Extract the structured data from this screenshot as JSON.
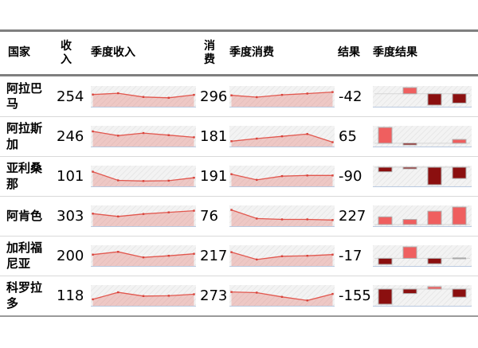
{
  "chart_data": {
    "type": "table",
    "title": "",
    "columns": [
      {
        "key": "country",
        "label": "国家",
        "kind": "text"
      },
      {
        "key": "income",
        "label": "收入",
        "kind": "number"
      },
      {
        "key": "income_trend",
        "label": "季度收入",
        "kind": "sparkline-area"
      },
      {
        "key": "spending",
        "label": "消费",
        "kind": "number"
      },
      {
        "key": "spending_trend",
        "label": "季度消费",
        "kind": "sparkline-area"
      },
      {
        "key": "result",
        "label": "结果",
        "kind": "number"
      },
      {
        "key": "result_trend",
        "label": "季度结果",
        "kind": "winloss-bars"
      }
    ],
    "rows": [
      {
        "country": "阿拉巴马",
        "income": 254,
        "income_trend": [
          60,
          68,
          45,
          40,
          58
        ],
        "spending": 296,
        "spending_trend": [
          55,
          44,
          58,
          66,
          75
        ],
        "result": -42,
        "result_trend": [
          null,
          30,
          -55,
          -45
        ]
      },
      {
        "country": "阿拉斯加",
        "income": 246,
        "income_trend": [
          78,
          52,
          68,
          55,
          42
        ],
        "spending": 181,
        "spending_trend": [
          18,
          34,
          48,
          62,
          12
        ],
        "result": 65,
        "result_trend": [
          75,
          -8,
          null,
          18
        ]
      },
      {
        "country": "亚利桑那",
        "income": 101,
        "income_trend": [
          75,
          22,
          18,
          20,
          38
        ],
        "spending": 191,
        "spending_trend": [
          60,
          25,
          48,
          52,
          52
        ],
        "result": -90,
        "result_trend": [
          -18,
          -6,
          -70,
          -45
        ]
      },
      {
        "country": "阿肯色",
        "income": 303,
        "income_trend": [
          62,
          45,
          60,
          70,
          80
        ],
        "spending": 76,
        "spending_trend": [
          85,
          32,
          27,
          27,
          23
        ],
        "result": 227,
        "result_trend": [
          30,
          20,
          52,
          68
        ]
      },
      {
        "country": "加利福尼亚",
        "income": 200,
        "income_trend": [
          55,
          72,
          38,
          48,
          60
        ],
        "spending": 217,
        "spending_trend": [
          70,
          25,
          45,
          48,
          55
        ],
        "result": -17,
        "result_trend": [
          -20,
          38,
          -18,
          0
        ]
      },
      {
        "country": "科罗拉多",
        "income": 118,
        "income_trend": [
          25,
          68,
          45,
          47,
          56
        ],
        "spending": 273,
        "spending_trend": [
          70,
          66,
          40,
          18,
          58
        ],
        "result": -155,
        "result_trend": [
          -75,
          -22,
          12,
          -40
        ]
      }
    ]
  },
  "style": {
    "line_color": "#e2574e",
    "area_fill": "rgba(228,90,80,0.28)",
    "marker_color": "#d8423a",
    "positive_bar": "#ef5f5f",
    "negative_bar": "#8b0f0f",
    "zero_bar": "#a8a8a8",
    "bar_border": "#b0b0b0",
    "axis_line": "#b9c9e0",
    "zero_line": "#d6d6d6",
    "cell_bg": "#f3f3f3",
    "hatch_color": "#e2e2e2",
    "border_dark": "#7f7f7f",
    "border_light": "#d9d9d9"
  }
}
